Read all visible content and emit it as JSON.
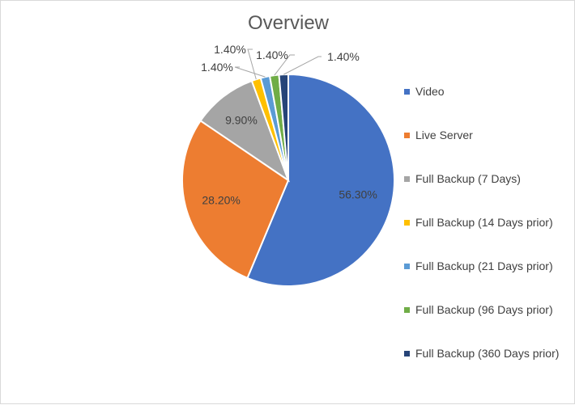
{
  "chart_data": {
    "type": "pie",
    "title": "Overview",
    "legend_position": "right",
    "slices": [
      {
        "name": "Video",
        "value": 56.3,
        "label": "56.30%",
        "color": "#4472C4"
      },
      {
        "name": "Live Server",
        "value": 28.2,
        "label": "28.20%",
        "color": "#ED7D31"
      },
      {
        "name": "Full Backup (7 Days)",
        "value": 9.9,
        "label": "9.90%",
        "color": "#A5A5A5"
      },
      {
        "name": "Full Backup (14 Days prior)",
        "value": 1.4,
        "label": "1.40%",
        "color": "#FFC000"
      },
      {
        "name": "Full Backup (21 Days prior)",
        "value": 1.4,
        "label": "1.40%",
        "color": "#5B9BD5"
      },
      {
        "name": "Full Backup (96 Days prior)",
        "value": 1.4,
        "label": "1.40%",
        "color": "#70AD47"
      },
      {
        "name": "Full Backup (360 Days prior)",
        "value": 1.4,
        "label": "1.40%",
        "color": "#264478"
      }
    ]
  }
}
